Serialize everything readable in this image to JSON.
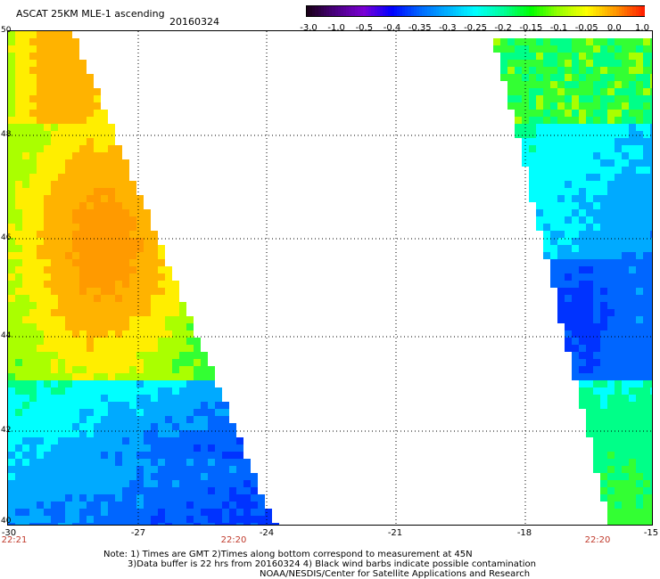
{
  "header": {
    "title": "ASCAT 25KM MLE-1 ascending",
    "date": "20160324"
  },
  "colorbar": {
    "labels": [
      "-3.0",
      "-1.0",
      "-0.5",
      "-0.4",
      "-0.35",
      "-0.3",
      "-0.25",
      "-0.2",
      "-0.15",
      "-0.1",
      "-0.05",
      "0.0",
      "1.0"
    ],
    "colors": [
      "#1a001a",
      "#4b0082",
      "#7b00d4",
      "#0000ff",
      "#0066ff",
      "#00b0ff",
      "#00ffff",
      "#00ff99",
      "#00ff00",
      "#99ff00",
      "#ffff00",
      "#ff9900",
      "#ff2200"
    ]
  },
  "map": {
    "lat_labels": [
      "50",
      "48",
      "46",
      "44",
      "42",
      "40"
    ],
    "lon_labels": [
      "-30",
      "-27",
      "-24",
      "-21",
      "-18",
      "-15"
    ],
    "time_labels": [
      "22:21",
      "22:20",
      "22:20"
    ]
  },
  "footer": {
    "note1": "Note: 1) Times are GMT 2)Times along bottom correspond to measurement at 45N",
    "note2": "3)Data buffer is 22 hrs from 20160324 4) Black wind barbs indicate possible contamination",
    "credit": "NOAA/NESDIS/Center for Satellite Applications and Research"
  }
}
